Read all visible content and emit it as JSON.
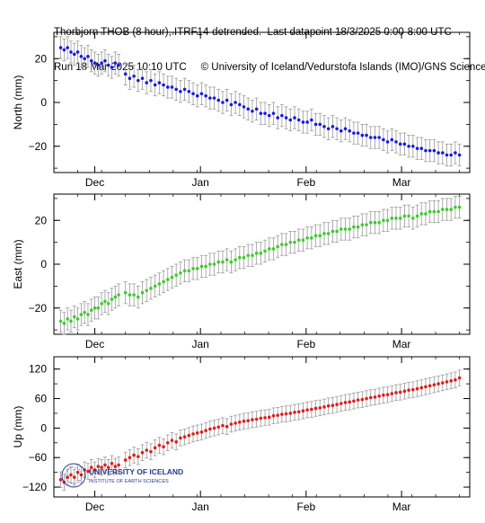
{
  "header": {
    "line1": "Thorbjorn THOB (8 hour), ITRF14-detrended.  Last datapoint 18/3/2025 0:00-8:00 UTC",
    "line2": "Run 18 Mar 2025 10:10 UTC     © University of Iceland/Vedurstofa Islands (IMO)/GNS Science"
  },
  "logo": {
    "line1": "UNIVERSITY OF ICELAND",
    "line2": "INSTITUTE OF EARTH SCIENCES"
  },
  "colors": {
    "north": "#1a1adf",
    "east": "#3ccc2a",
    "up": "#dd1f1f",
    "errorbar": "#9a9a9a",
    "logo": "#2a3a8c"
  },
  "chart_data": [
    {
      "type": "scatter",
      "ylabel": "North (mm)",
      "ylim": [
        -32,
        32
      ],
      "yticks": [
        -20,
        0,
        20
      ],
      "xlim": [
        "2024-11-19",
        "2025-03-21"
      ],
      "xtick_labels": [
        {
          "label": "Dec",
          "date": "2024-12-01"
        },
        {
          "label": "Jan",
          "date": "2025-01-01"
        },
        {
          "label": "Feb",
          "date": "2025-02-01"
        },
        {
          "label": "Mar",
          "date": "2025-03-01"
        }
      ],
      "error_mm": 5,
      "segments": [
        {
          "start": "2024-11-21",
          "end": "2024-12-08",
          "values": [
            25,
            24,
            25,
            23,
            22,
            23,
            21,
            20,
            21,
            19,
            18,
            17,
            18,
            19,
            17,
            16,
            18,
            17
          ]
        },
        {
          "start": "2024-12-10",
          "end": "2025-03-18",
          "values": [
            13,
            11,
            12,
            10,
            11,
            9,
            10,
            8,
            9,
            8,
            7,
            7,
            6,
            5,
            6,
            5,
            4,
            3,
            4,
            3,
            2,
            2,
            1,
            0,
            1,
            -1,
            0,
            -1,
            -2,
            -3,
            -4,
            -3,
            -5,
            -5,
            -6,
            -5,
            -7,
            -6,
            -7,
            -8,
            -7,
            -8,
            -9,
            -9,
            -8,
            -10,
            -10,
            -11,
            -12,
            -11,
            -12,
            -13,
            -12,
            -13,
            -14,
            -14,
            -15,
            -15,
            -16,
            -16,
            -16,
            -17,
            -18,
            -17,
            -18,
            -19,
            -19,
            -20,
            -20,
            -21,
            -21,
            -22,
            -22,
            -22,
            -23,
            -23,
            -24,
            -24,
            -23,
            -24
          ]
        }
      ]
    },
    {
      "type": "scatter",
      "ylabel": "East (mm)",
      "ylim": [
        -32,
        32
      ],
      "yticks": [
        -20,
        0,
        20
      ],
      "xlim": [
        "2024-11-19",
        "2025-03-21"
      ],
      "xtick_labels": [
        {
          "label": "Dec",
          "date": "2024-12-01"
        },
        {
          "label": "Jan",
          "date": "2025-01-01"
        },
        {
          "label": "Feb",
          "date": "2025-02-01"
        },
        {
          "label": "Mar",
          "date": "2025-03-01"
        }
      ],
      "error_mm": 5,
      "segments": [
        {
          "start": "2024-11-21",
          "end": "2024-12-08",
          "values": [
            -26,
            -27,
            -25,
            -26,
            -24,
            -25,
            -23,
            -22,
            -23,
            -21,
            -20,
            -20,
            -18,
            -17,
            -18,
            -16,
            -15,
            -14
          ]
        },
        {
          "start": "2024-12-10",
          "end": "2025-03-18",
          "values": [
            -13,
            -14,
            -14,
            -15,
            -13,
            -12,
            -11,
            -10,
            -9,
            -8,
            -7,
            -6,
            -5,
            -4,
            -3,
            -3,
            -2,
            -2,
            -1,
            -1,
            0,
            0,
            1,
            1,
            2,
            1,
            2,
            3,
            3,
            4,
            4,
            5,
            5,
            6,
            7,
            7,
            8,
            9,
            9,
            10,
            10,
            11,
            11,
            12,
            12,
            13,
            13,
            14,
            14,
            15,
            15,
            16,
            16,
            16,
            17,
            17,
            18,
            18,
            19,
            19,
            19,
            20,
            20,
            21,
            21,
            21,
            22,
            22,
            21,
            22,
            23,
            23,
            24,
            24,
            24,
            25,
            25,
            25,
            26,
            26
          ]
        }
      ]
    },
    {
      "type": "scatter",
      "ylabel": "Up (mm)",
      "ylim": [
        -140,
        145
      ],
      "yticks": [
        -120,
        -60,
        0,
        60,
        120
      ],
      "xlim": [
        "2024-11-19",
        "2025-03-21"
      ],
      "xtick_labels": [
        {
          "label": "Dec",
          "date": "2024-12-01"
        },
        {
          "label": "Jan",
          "date": "2025-01-01"
        },
        {
          "label": "Feb",
          "date": "2025-02-01"
        },
        {
          "label": "Mar",
          "date": "2025-03-01"
        }
      ],
      "error_mm": 16,
      "segments": [
        {
          "start": "2024-11-21",
          "end": "2024-12-08",
          "values": [
            -105,
            -110,
            -100,
            -95,
            -100,
            -90,
            -95,
            -85,
            -88,
            -80,
            -85,
            -78,
            -80,
            -75,
            -80,
            -72,
            -78,
            -75
          ]
        },
        {
          "start": "2024-12-10",
          "end": "2025-03-18",
          "values": [
            -65,
            -60,
            -55,
            -58,
            -50,
            -45,
            -48,
            -40,
            -35,
            -38,
            -30,
            -25,
            -28,
            -20,
            -18,
            -15,
            -12,
            -10,
            -8,
            -5,
            -2,
            0,
            2,
            5,
            3,
            8,
            10,
            12,
            14,
            15,
            17,
            18,
            20,
            21,
            22,
            25,
            26,
            28,
            29,
            30,
            32,
            33,
            35,
            37,
            38,
            40,
            41,
            43,
            45,
            46,
            48,
            50,
            52,
            53,
            55,
            57,
            58,
            60,
            62,
            63,
            65,
            67,
            68,
            70,
            72,
            73,
            75,
            77,
            78,
            80,
            82,
            84,
            86,
            88,
            90,
            92,
            94,
            96,
            98,
            102
          ]
        }
      ]
    }
  ]
}
